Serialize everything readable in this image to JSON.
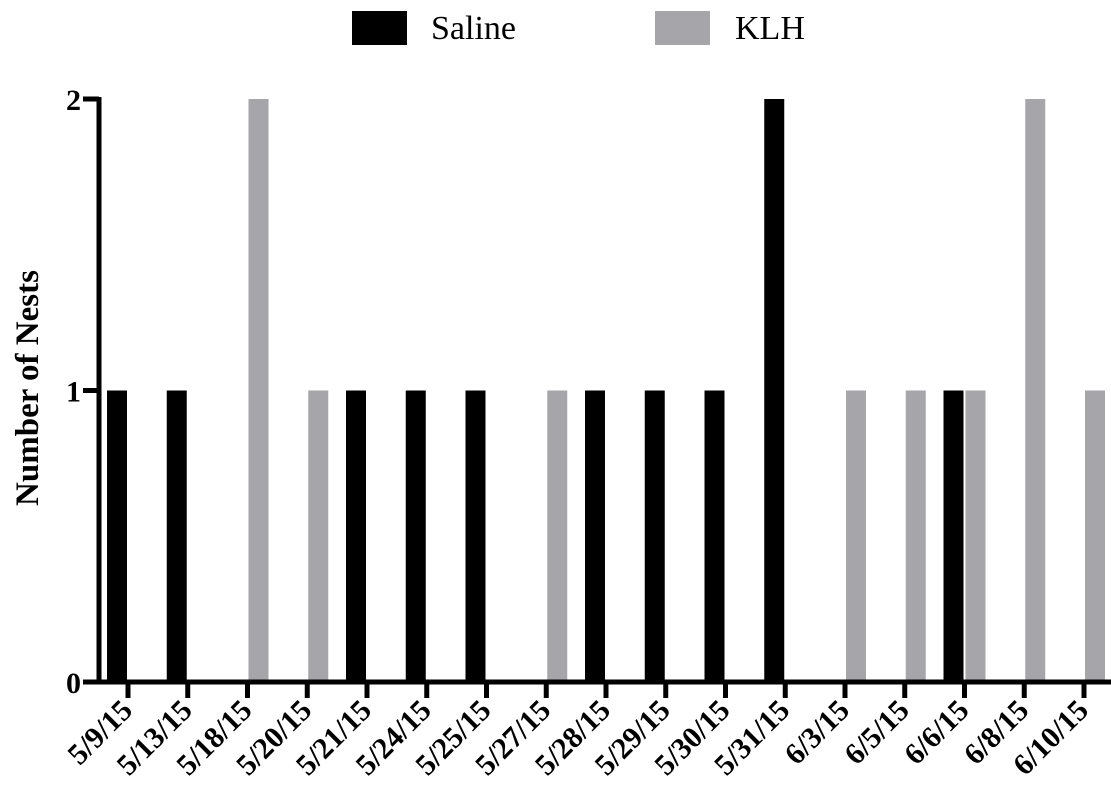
{
  "chart_data": {
    "type": "bar",
    "title": "",
    "xlabel": "",
    "ylabel": "Number of Nests",
    "ylim": [
      0,
      2
    ],
    "yticks": [
      "0",
      "1",
      "2"
    ],
    "legend_position": "top",
    "categories": [
      "5/9/15",
      "5/13/15",
      "5/18/15",
      "5/20/15",
      "5/21/15",
      "5/24/15",
      "5/25/15",
      "5/27/15",
      "5/28/15",
      "5/29/15",
      "5/30/15",
      "5/31/15",
      "6/3/15",
      "6/5/15",
      "6/6/15",
      "6/8/15",
      "6/10/15"
    ],
    "series": [
      {
        "name": "Saline",
        "color": "#000000",
        "values": [
          1,
          1,
          0,
          0,
          1,
          1,
          1,
          0,
          1,
          1,
          1,
          2,
          0,
          0,
          1,
          0,
          0
        ]
      },
      {
        "name": "KLH",
        "color": "#a6a5a9",
        "values": [
          0,
          0,
          2,
          1,
          0,
          0,
          0,
          1,
          0,
          0,
          0,
          0,
          1,
          1,
          1,
          2,
          1
        ]
      }
    ]
  }
}
